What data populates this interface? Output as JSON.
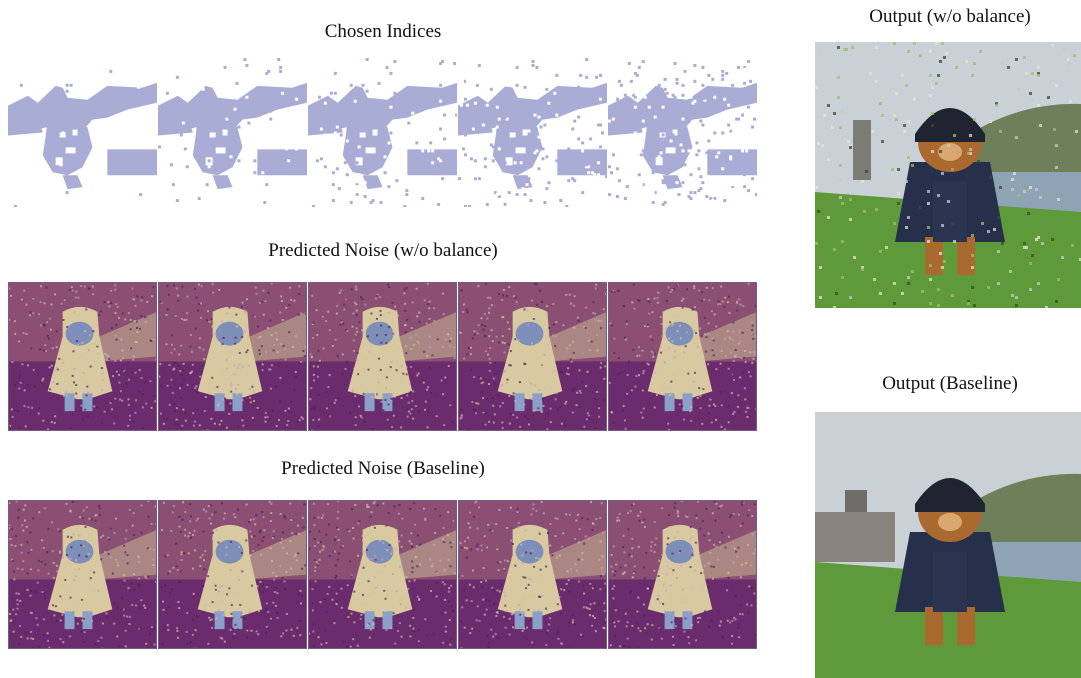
{
  "captions": {
    "chosen_indices": "Chosen Indices",
    "noise_wo_balance": "Predicted Noise (w/o balance)",
    "noise_baseline": "Predicted Noise (Baseline)",
    "output_wo_balance": "Output (w/o balance)",
    "output_baseline": "Output (Baseline)"
  },
  "colors": {
    "mask": "#a9acd4",
    "noise_dark": "#6b2c6e",
    "noise_light": "#d8c9a0",
    "sky": "#c9d1d6",
    "grass": "#5f9a3a",
    "water": "#8ea4b4",
    "hill": "#6f7f5a",
    "bear": "#a9692f",
    "cape": "#26304a"
  },
  "mask_steps": [
    1,
    2,
    3,
    4,
    5
  ],
  "noise_steps": [
    1,
    2,
    3,
    4,
    5
  ]
}
